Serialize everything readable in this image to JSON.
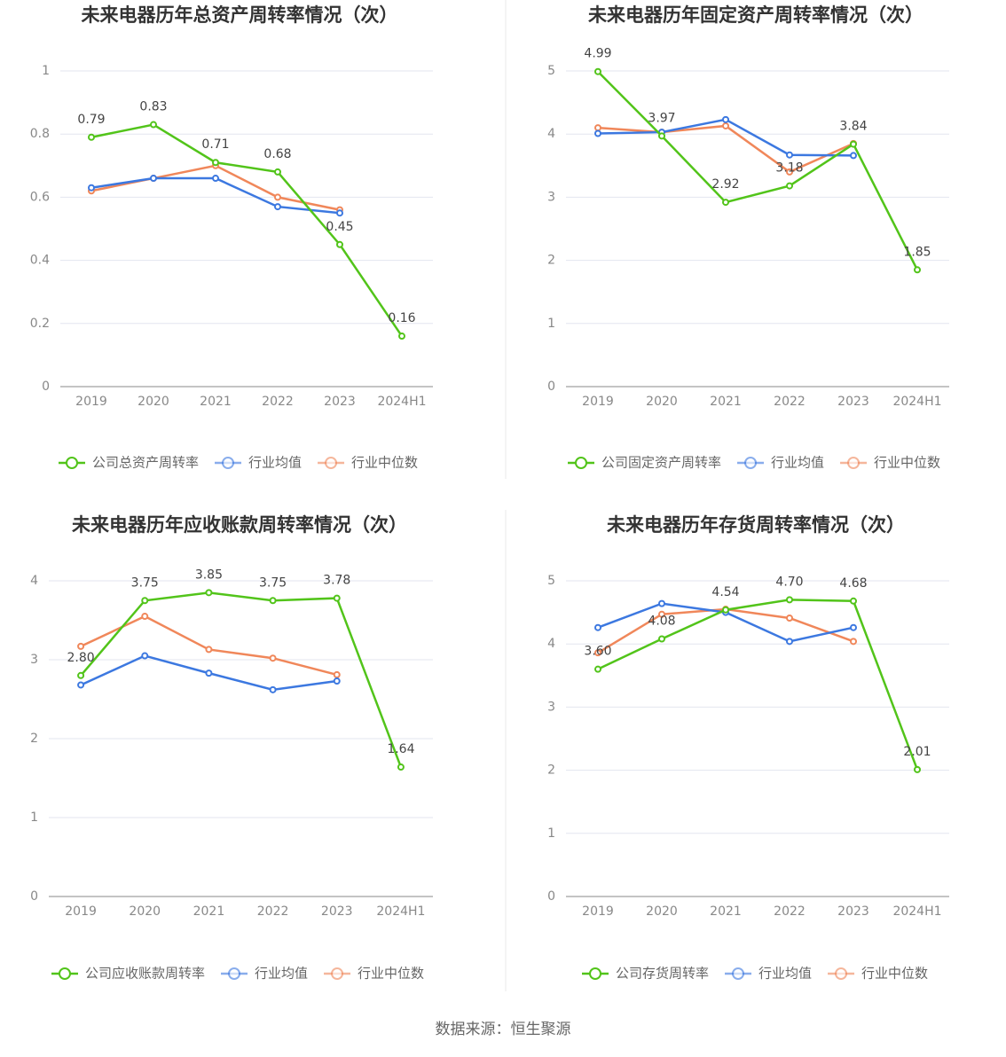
{
  "chart_data": [
    {
      "type": "line",
      "title": "未来电器历年总资产周转率情况（次）",
      "categories": [
        "2019",
        "2020",
        "2021",
        "2022",
        "2023",
        "2024H1"
      ],
      "series": [
        {
          "name": "公司总资产周转率",
          "color": "#52c41a",
          "values": [
            0.79,
            0.83,
            0.71,
            0.68,
            0.45,
            0.16
          ],
          "value_labels": [
            "0.79",
            "0.83",
            "0.71",
            "0.68",
            "0.45",
            "0.16"
          ]
        },
        {
          "name": "行业均值",
          "color": "#3c78e0",
          "values": [
            0.63,
            0.66,
            0.66,
            0.57,
            0.55,
            null
          ]
        },
        {
          "name": "行业中位数",
          "color": "#f0875a",
          "values": [
            0.62,
            0.66,
            0.7,
            0.6,
            0.56,
            null
          ]
        }
      ],
      "ylim": [
        0,
        1
      ],
      "yticks": [
        0,
        0.2,
        0.4,
        0.6,
        0.8,
        1
      ],
      "grid": true
    },
    {
      "type": "line",
      "title": "未来电器历年固定资产周转率情况（次）",
      "categories": [
        "2019",
        "2020",
        "2021",
        "2022",
        "2023",
        "2024H1"
      ],
      "series": [
        {
          "name": "公司固定资产周转率",
          "color": "#52c41a",
          "values": [
            4.99,
            3.97,
            2.92,
            3.18,
            3.84,
            1.85
          ],
          "value_labels": [
            "4.99",
            "3.97",
            "2.92",
            "3.18",
            "3.84",
            "1.85"
          ]
        },
        {
          "name": "行业均值",
          "color": "#3c78e0",
          "values": [
            4.01,
            4.03,
            4.23,
            3.67,
            3.66,
            null
          ]
        },
        {
          "name": "行业中位数",
          "color": "#f0875a",
          "values": [
            4.1,
            4.03,
            4.13,
            3.4,
            3.85,
            null
          ]
        }
      ],
      "ylim": [
        0,
        5
      ],
      "yticks": [
        0,
        1,
        2,
        3,
        4,
        5
      ],
      "grid": true
    },
    {
      "type": "line",
      "title": "未来电器历年应收账款周转率情况（次）",
      "categories": [
        "2019",
        "2020",
        "2021",
        "2022",
        "2023",
        "2024H1"
      ],
      "series": [
        {
          "name": "公司应收账款周转率",
          "color": "#52c41a",
          "values": [
            2.8,
            3.75,
            3.85,
            3.75,
            3.78,
            1.64
          ],
          "value_labels": [
            "2.80",
            "3.75",
            "3.85",
            "3.75",
            "3.78",
            "1.64"
          ]
        },
        {
          "name": "行业均值",
          "color": "#3c78e0",
          "values": [
            2.68,
            3.05,
            2.83,
            2.62,
            2.73,
            null
          ]
        },
        {
          "name": "行业中位数",
          "color": "#f0875a",
          "values": [
            3.17,
            3.55,
            3.13,
            3.02,
            2.81,
            null
          ]
        }
      ],
      "ylim": [
        0,
        4
      ],
      "yticks": [
        0,
        1,
        2,
        3,
        4
      ],
      "grid": true
    },
    {
      "type": "line",
      "title": "未来电器历年存货周转率情况（次）",
      "categories": [
        "2019",
        "2020",
        "2021",
        "2022",
        "2023",
        "2024H1"
      ],
      "series": [
        {
          "name": "公司存货周转率",
          "color": "#52c41a",
          "values": [
            3.6,
            4.08,
            4.54,
            4.7,
            4.68,
            2.01
          ],
          "value_labels": [
            "3.60",
            "4.08",
            "4.54",
            "4.70",
            "4.68",
            "2.01"
          ]
        },
        {
          "name": "行业均值",
          "color": "#3c78e0",
          "values": [
            4.26,
            4.64,
            4.5,
            4.04,
            4.26,
            null
          ]
        },
        {
          "name": "行业中位数",
          "color": "#f0875a",
          "values": [
            3.86,
            4.47,
            4.55,
            4.41,
            4.04,
            null
          ]
        }
      ],
      "ylim": [
        0,
        5
      ],
      "yticks": [
        0,
        1,
        2,
        3,
        4,
        5
      ],
      "grid": true
    }
  ],
  "source": "数据来源：恒生聚源"
}
